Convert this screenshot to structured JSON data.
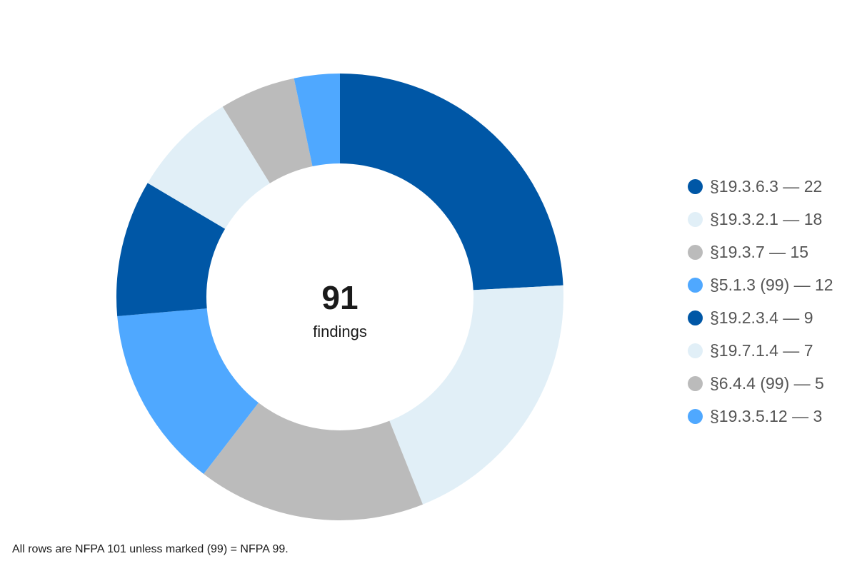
{
  "chart_data": {
    "type": "pie",
    "variant": "donut",
    "title": "",
    "center": {
      "total": "91",
      "label": "findings"
    },
    "slices": [
      {
        "label": "§19.3.6.3 — 22",
        "value": 22,
        "color": "#0057A6"
      },
      {
        "label": "§19.3.2.1 — 18",
        "value": 18,
        "color": "#E1EFF7"
      },
      {
        "label": "§19.3.7 — 15",
        "value": 15,
        "color": "#BBBBBB"
      },
      {
        "label": "§5.1.3 (99) — 12",
        "value": 12,
        "color": "#4FA8FF"
      },
      {
        "label": "§19.2.3.4 — 9",
        "value": 9,
        "color": "#0057A6"
      },
      {
        "label": "§19.7.1.4 — 7",
        "value": 7,
        "color": "#E1EFF7"
      },
      {
        "label": "§6.4.4 (99) — 5",
        "value": 5,
        "color": "#BBBBBB"
      },
      {
        "label": "§19.3.5.12 — 3",
        "value": 3,
        "color": "#4FA8FF"
      }
    ],
    "legend": {
      "position": "right"
    },
    "footnote": "All rows are NFPA 101 unless marked (99) = NFPA 99."
  }
}
